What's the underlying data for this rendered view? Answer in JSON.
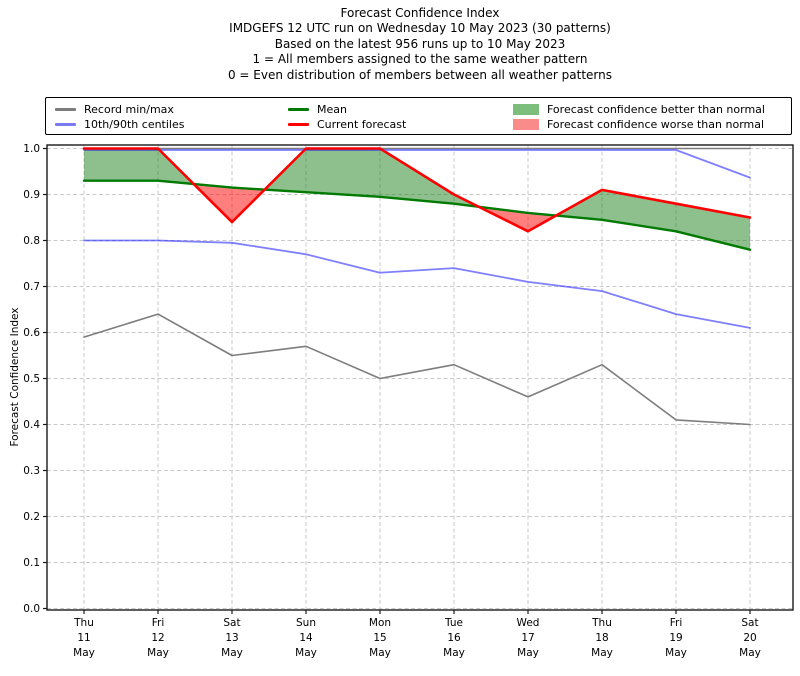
{
  "chart_data": {
    "type": "line",
    "titles": [
      "Forecast Confidence Index",
      "IMDGEFS 12 UTC run on Wednesday 10 May 2023 (30 patterns)",
      "Based on the latest 956 runs up to 10 May 2023",
      "1 = All members assigned to the same weather pattern",
      "0 = Even distribution of members between all weather patterns"
    ],
    "ylabel": "Forecast Confidence Index",
    "ylim": [
      0.0,
      1.0
    ],
    "y_ticks": [
      "0.0",
      "0.1",
      "0.2",
      "0.3",
      "0.4",
      "0.5",
      "0.6",
      "0.7",
      "0.8",
      "0.9",
      "1.0"
    ],
    "grid": "dashed, both axes",
    "legend_position": "top row, 3 columns, boxed",
    "x_categories": [
      [
        "Thu",
        "11",
        "May"
      ],
      [
        "Fri",
        "12",
        "May"
      ],
      [
        "Sat",
        "13",
        "May"
      ],
      [
        "Sun",
        "14",
        "May"
      ],
      [
        "Mon",
        "15",
        "May"
      ],
      [
        "Tue",
        "16",
        "May"
      ],
      [
        "Wed",
        "17",
        "May"
      ],
      [
        "Thu",
        "18",
        "May"
      ],
      [
        "Fri",
        "19",
        "May"
      ],
      [
        "Sat",
        "20",
        "May"
      ]
    ],
    "series": [
      {
        "name": "Record max",
        "legend": "Record min/max",
        "color": "#7d7d7d",
        "width": 1.6,
        "values": [
          1.0,
          1.0,
          1.0,
          1.0,
          1.0,
          1.0,
          1.0,
          1.0,
          1.0,
          1.0
        ]
      },
      {
        "name": "Record min",
        "legend": "Record min/max",
        "color": "#7d7d7d",
        "width": 1.6,
        "values": [
          0.59,
          0.64,
          0.55,
          0.57,
          0.5,
          0.53,
          0.46,
          0.53,
          0.41,
          0.4
        ]
      },
      {
        "name": "90th centile",
        "legend": "10th/90th centiles",
        "color": "rgba(0,0,255,0.5)",
        "width": 1.8,
        "values": [
          1.0,
          1.0,
          1.0,
          1.0,
          1.0,
          1.0,
          1.0,
          1.0,
          1.0,
          0.94
        ]
      },
      {
        "name": "10th centile",
        "legend": "10th/90th centiles",
        "color": "rgba(0,0,255,0.5)",
        "width": 1.8,
        "values": [
          0.8,
          0.8,
          0.795,
          0.77,
          0.73,
          0.74,
          0.71,
          0.69,
          0.64,
          0.61
        ]
      },
      {
        "name": "Mean",
        "legend": "Mean",
        "color": "#007a00",
        "width": 2.4,
        "values": [
          0.93,
          0.93,
          0.915,
          0.905,
          0.895,
          0.88,
          0.86,
          0.845,
          0.82,
          0.78
        ]
      },
      {
        "name": "Current forecast",
        "legend": "Current forecast",
        "color": "#ff0000",
        "width": 2.6,
        "values": [
          1.0,
          1.0,
          0.84,
          1.0,
          1.0,
          0.9,
          0.82,
          0.91,
          0.88,
          0.85
        ]
      }
    ],
    "fill_between": {
      "upper": "Current forecast",
      "lower": "Mean",
      "above_color": "rgba(30,130,30,0.5)",
      "below_color": "rgba(255,0,0,0.5)",
      "above_label": "Forecast confidence better than normal",
      "below_label": "Forecast confidence worse than normal"
    }
  },
  "legend": {
    "entries": [
      {
        "type": "line",
        "color": "#7d7d7d",
        "label": "Record min/max"
      },
      {
        "type": "line",
        "color": "#7a7af2",
        "label": "10th/90th centiles"
      },
      {
        "type": "line",
        "color": "#007a00",
        "label": "Mean"
      },
      {
        "type": "line",
        "color": "#ff0000",
        "label": "Current forecast"
      },
      {
        "type": "patch",
        "color": "#7cbf7c",
        "label": "Forecast confidence better than normal"
      },
      {
        "type": "patch",
        "color": "#f98b8b",
        "label": "Forecast confidence worse than normal"
      }
    ]
  },
  "style_colors": {
    "grid": "#c9c9c9",
    "spine": "#1a1a1a",
    "tick_label": "#000000"
  }
}
